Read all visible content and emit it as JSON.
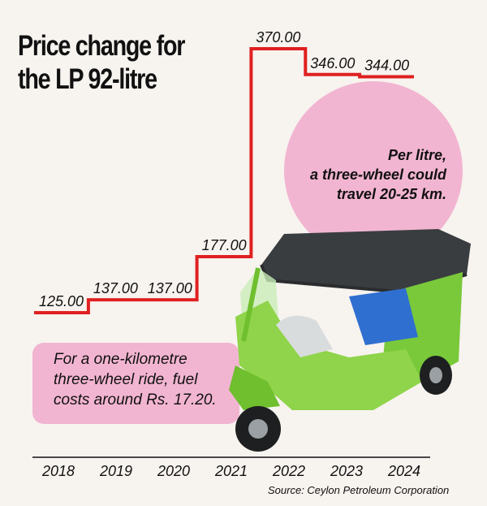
{
  "chart_data": {
    "type": "line",
    "title": "Price change for the LP 92-litre",
    "categories": [
      "2018",
      "2019",
      "2020",
      "2021",
      "2022",
      "2023",
      "2024"
    ],
    "values": [
      125.0,
      137.0,
      137.0,
      177.0,
      370.0,
      346.0,
      344.0
    ],
    "value_labels": [
      "125.00",
      "137.00",
      "137.00",
      "177.00",
      "370.00",
      "346.00",
      "344.00"
    ],
    "line_style": "step",
    "line_color": "#e02020",
    "ylim": [
      125,
      370
    ],
    "grid": false,
    "legend": "none"
  },
  "title_lines": [
    "Price change for",
    "the LP 92-litre"
  ],
  "callout_top": {
    "lines": [
      "Per litre,",
      "a three-wheel could",
      "travel 20-25 km."
    ],
    "color": "#f2b5d1"
  },
  "callout_bottom": {
    "lines": [
      "For a one-kilometre",
      "three-wheel ride, fuel",
      "costs around Rs. 17.20."
    ],
    "color": "#f2b5d1"
  },
  "source": "Source: Ceylon Petroleum Corporation"
}
